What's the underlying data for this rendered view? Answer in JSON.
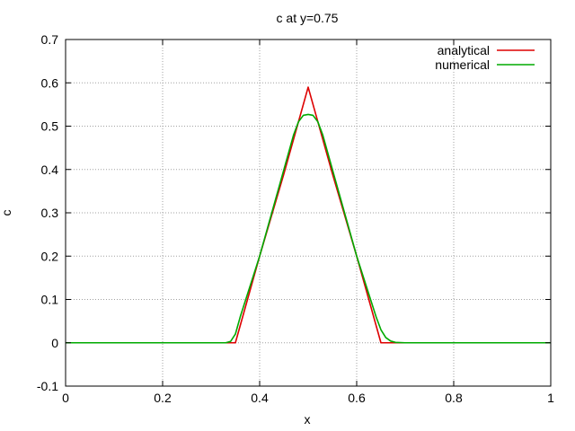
{
  "chart_data": {
    "type": "line",
    "title": "c at y=0.75",
    "xlabel": "x",
    "ylabel": "c",
    "xlim": [
      0,
      1
    ],
    "ylim": [
      -0.1,
      0.7
    ],
    "xticks": [
      0,
      0.2,
      0.4,
      0.6,
      0.8,
      1
    ],
    "xtick_labels": [
      "0",
      "0.2",
      "0.4",
      "0.6",
      "0.8",
      "1"
    ],
    "yticks": [
      -0.1,
      0,
      0.1,
      0.2,
      0.3,
      0.4,
      0.5,
      0.6,
      0.7
    ],
    "ytick_labels": [
      "-0.1",
      "0",
      "0.1",
      "0.2",
      "0.3",
      "0.4",
      "0.5",
      "0.6",
      "0.7"
    ],
    "grid": true,
    "legend_position": "top-right",
    "series": [
      {
        "name": "analytical",
        "color": "#dd0000",
        "x": [
          0,
          0.34,
          0.35,
          0.4,
          0.45,
          0.5,
          0.55,
          0.6,
          0.65,
          0.66,
          1.0
        ],
        "y": [
          0,
          0,
          0,
          0.2,
          0.39,
          0.59,
          0.39,
          0.2,
          0,
          0,
          0
        ]
      },
      {
        "name": "numerical",
        "color": "#00aa00",
        "x": [
          0,
          0.33,
          0.34,
          0.35,
          0.36,
          0.38,
          0.4,
          0.42,
          0.44,
          0.46,
          0.47,
          0.48,
          0.49,
          0.5,
          0.51,
          0.52,
          0.53,
          0.54,
          0.56,
          0.58,
          0.6,
          0.62,
          0.64,
          0.65,
          0.66,
          0.67,
          0.68,
          0.7,
          1.0
        ],
        "y": [
          0,
          0,
          0.003,
          0.02,
          0.06,
          0.13,
          0.2,
          0.28,
          0.36,
          0.44,
          0.48,
          0.51,
          0.525,
          0.527,
          0.525,
          0.51,
          0.48,
          0.44,
          0.36,
          0.28,
          0.2,
          0.13,
          0.06,
          0.03,
          0.012,
          0.004,
          0.001,
          0,
          0
        ]
      }
    ]
  }
}
